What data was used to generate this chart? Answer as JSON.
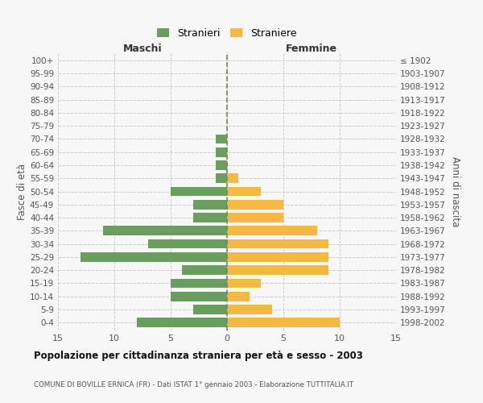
{
  "age_groups": [
    "0-4",
    "5-9",
    "10-14",
    "15-19",
    "20-24",
    "25-29",
    "30-34",
    "35-39",
    "40-44",
    "45-49",
    "50-54",
    "55-59",
    "60-64",
    "65-69",
    "70-74",
    "75-79",
    "80-84",
    "85-89",
    "90-94",
    "95-99",
    "100+"
  ],
  "birth_years": [
    "1998-2002",
    "1993-1997",
    "1988-1992",
    "1983-1987",
    "1978-1982",
    "1973-1977",
    "1968-1972",
    "1963-1967",
    "1958-1962",
    "1953-1957",
    "1948-1952",
    "1943-1947",
    "1938-1942",
    "1933-1937",
    "1928-1932",
    "1923-1927",
    "1918-1922",
    "1913-1917",
    "1908-1912",
    "1903-1907",
    "≤ 1902"
  ],
  "males": [
    8,
    3,
    5,
    5,
    4,
    13,
    7,
    11,
    3,
    3,
    5,
    1,
    1,
    1,
    1,
    0,
    0,
    0,
    0,
    0,
    0
  ],
  "females": [
    10,
    4,
    2,
    3,
    9,
    9,
    9,
    8,
    5,
    5,
    3,
    1,
    0,
    0,
    0,
    0,
    0,
    0,
    0,
    0,
    0
  ],
  "male_color": "#6a9e5e",
  "female_color": "#f5b942",
  "grid_color": "#cccccc",
  "dashed_line_color": "#808060",
  "bg_color": "#f7f7f7",
  "title": "Popolazione per cittadinanza straniera per età e sesso - 2003",
  "subtitle": "COMUNE DI BOVILLE ERNICA (FR) - Dati ISTAT 1° gennaio 2003 - Elaborazione TUTTITALIA.IT",
  "xlabel_left": "Maschi",
  "xlabel_right": "Femmine",
  "ylabel_left": "Fasce di età",
  "ylabel_right": "Anni di nascita",
  "legend_stranieri": "Stranieri",
  "legend_straniere": "Straniere",
  "xlim": 15
}
